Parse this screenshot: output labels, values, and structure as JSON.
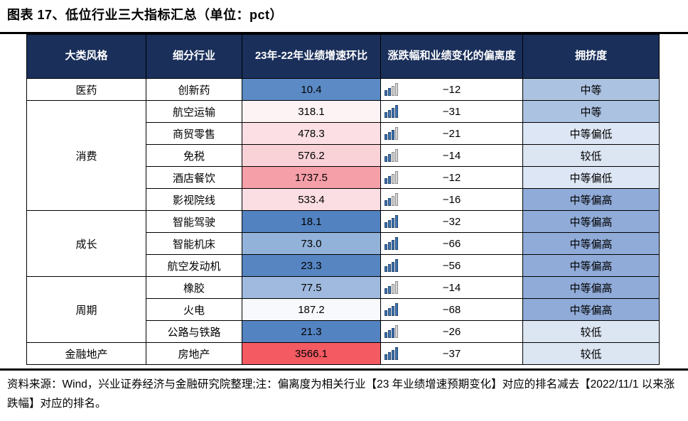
{
  "title": "图表 17、低位行业三大指标汇总（单位：pct）",
  "footer": "资料来源：Wind，兴业证券经济与金融研究院整理;注：偏离度为相关行业【23 年业绩增速预期变化】对应的排名减去【2022/11/1 以来涨跌幅】对应的排名。",
  "colors": {
    "header_bg": "#1A2F5A",
    "header_text": "#FFFFFF",
    "border": "#000000",
    "icon_filled": "#3E75B5",
    "icon_filled_border": "#24466E",
    "icon_empty": "#D9D9D9",
    "icon_empty_border": "#8C8C8C"
  },
  "table": {
    "headers": [
      "大类风格",
      "细分行业",
      "23年-22年业绩增速环比",
      "涨跌幅和业绩变化的偏离度",
      "拥挤度"
    ],
    "rows": [
      {
        "group": "医药",
        "group_span": 1,
        "industry": "创新药",
        "growth": "10.4",
        "growth_bg": "#5B8AC5",
        "bars": 2,
        "deviation": "−12",
        "crowd": "中等",
        "crowd_bg": "#ACC2E1"
      },
      {
        "group": "消费",
        "group_span": 5,
        "industry": "航空运输",
        "growth": "318.1",
        "growth_bg": "#FDF2F4",
        "bars": 4,
        "deviation": "−31",
        "crowd": "中等",
        "crowd_bg": "#ACC2E1"
      },
      {
        "industry": "商贸零售",
        "growth": "478.3",
        "growth_bg": "#FBDFE4",
        "bars": 3,
        "deviation": "−21",
        "crowd": "中等偏低",
        "crowd_bg": "#DDE6F4"
      },
      {
        "industry": "免税",
        "growth": "576.2",
        "growth_bg": "#F9D2D8",
        "bars": 2,
        "deviation": "−14",
        "crowd": "较低",
        "crowd_bg": "#DCE5F2"
      },
      {
        "industry": "酒店餐饮",
        "growth": "1737.5",
        "growth_bg": "#F59FA8",
        "bars": 2,
        "deviation": "−12",
        "crowd": "中等偏低",
        "crowd_bg": "#DDE6F4"
      },
      {
        "industry": "影视院线",
        "growth": "533.4",
        "growth_bg": "#FBDEE3",
        "bars": 2,
        "deviation": "−16",
        "crowd": "中等偏高",
        "crowd_bg": "#90ABD8"
      },
      {
        "group": "成长",
        "group_span": 3,
        "industry": "智能驾驶",
        "growth": "18.1",
        "growth_bg": "#5282C0",
        "bars": 4,
        "deviation": "−32",
        "crowd": "中等偏高",
        "crowd_bg": "#90ABD8"
      },
      {
        "industry": "智能机床",
        "growth": "73.0",
        "growth_bg": "#92B2D9",
        "bars": 4,
        "deviation": "−66",
        "crowd": "中等偏高",
        "crowd_bg": "#90ABD8"
      },
      {
        "industry": "航空发动机",
        "growth": "23.3",
        "growth_bg": "#5685C2",
        "bars": 4,
        "deviation": "−56",
        "crowd": "中等偏高",
        "crowd_bg": "#90ABD8"
      },
      {
        "group": "周期",
        "group_span": 3,
        "industry": "橡胶",
        "growth": "77.5",
        "growth_bg": "#9FBADE",
        "bars": 2,
        "deviation": "−14",
        "crowd": "中等偏高",
        "crowd_bg": "#90ABD8"
      },
      {
        "industry": "火电",
        "growth": "187.2",
        "growth_bg": "#F7F9FC",
        "bars": 4,
        "deviation": "−68",
        "crowd": "中等偏高",
        "crowd_bg": "#90ABD8"
      },
      {
        "industry": "公路与铁路",
        "growth": "21.3",
        "growth_bg": "#5483C1",
        "bars": 3,
        "deviation": "−26",
        "crowd": "较低",
        "crowd_bg": "#DCE5F2"
      },
      {
        "group": "金融地产",
        "group_span": 1,
        "industry": "房地产",
        "growth": "3566.1",
        "growth_bg": "#F45A62",
        "bars": 4,
        "deviation": "−37",
        "crowd": "较低",
        "crowd_bg": "#DCE5F2"
      }
    ]
  }
}
